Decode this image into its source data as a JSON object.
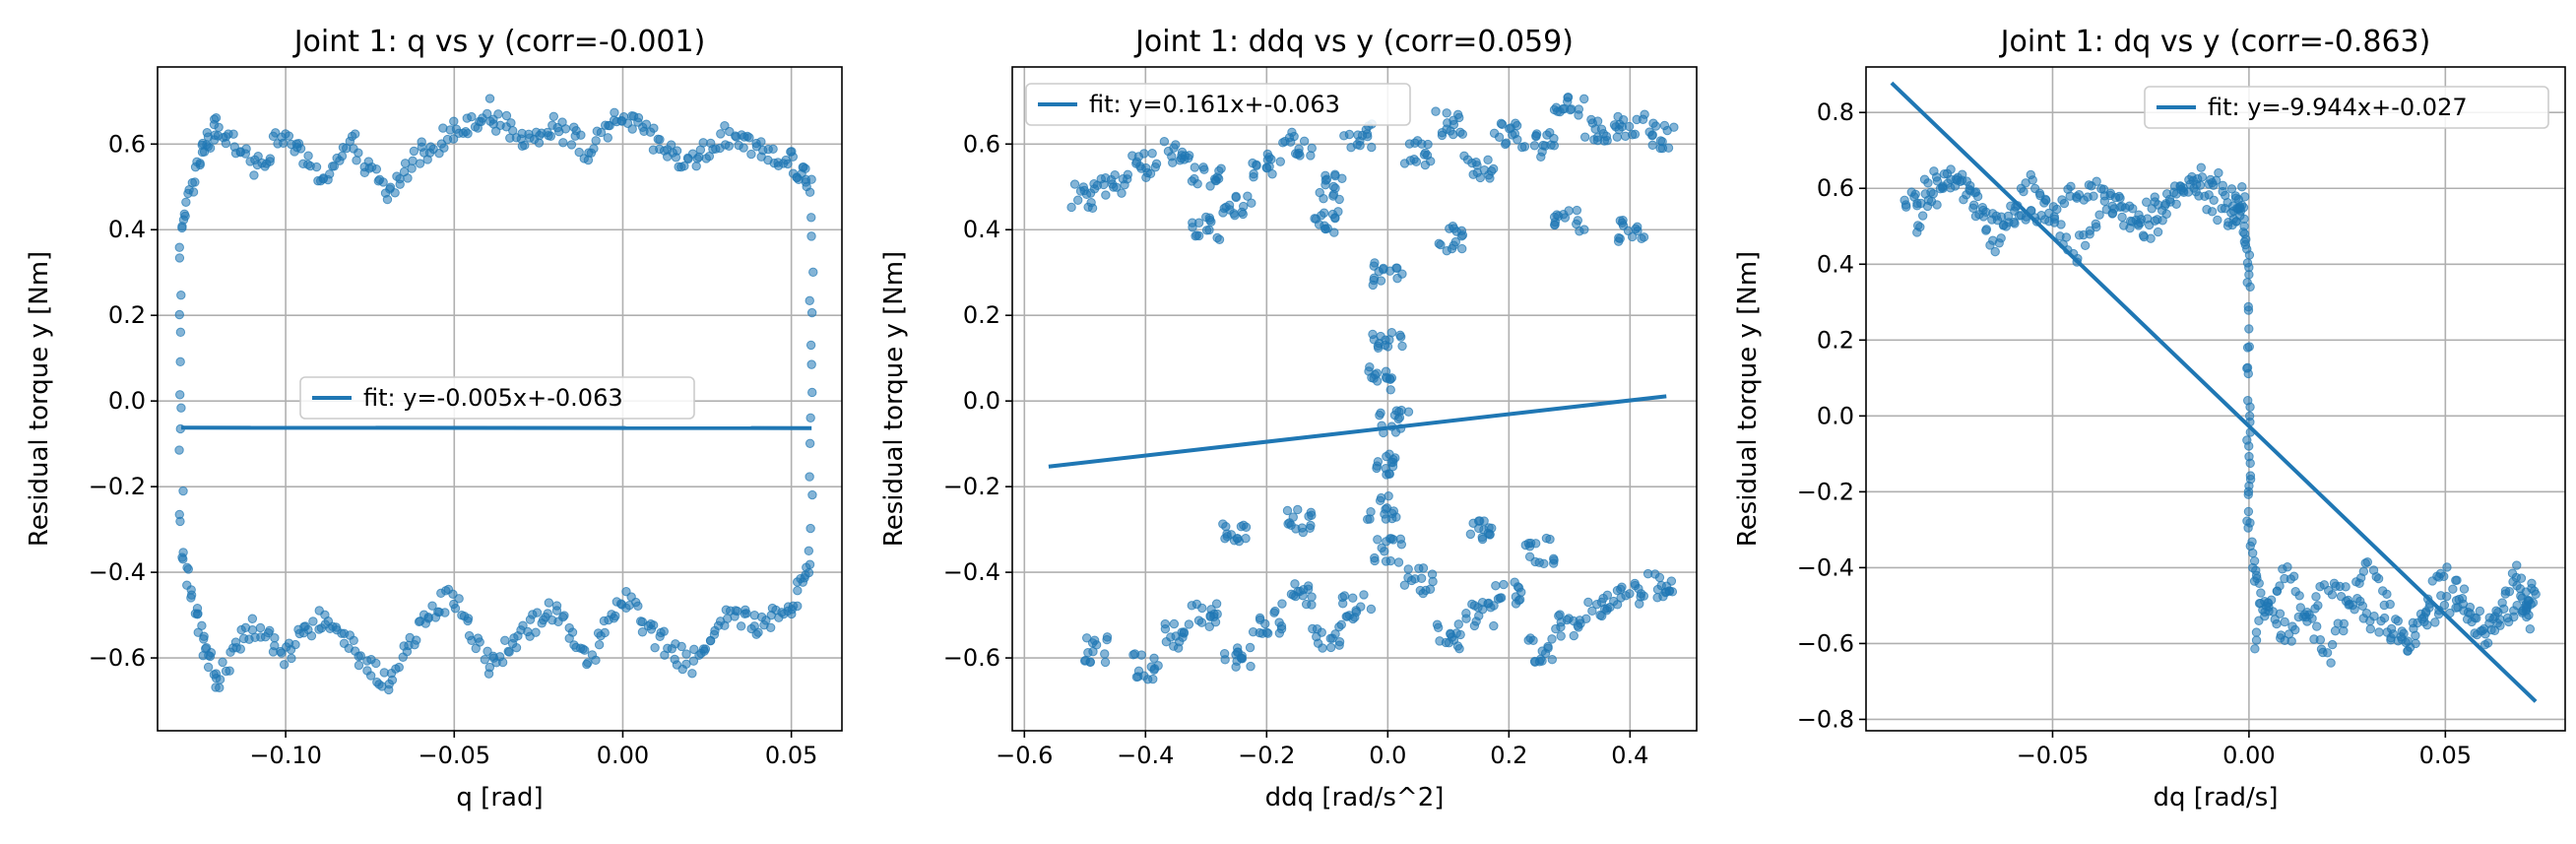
{
  "figure": {
    "plot_color": "#1f77b4",
    "grid_color": "#b0b0b0"
  },
  "chart_data": [
    {
      "type": "scatter",
      "title": "Joint 1: q vs y (corr=-0.001)",
      "xlabel": "q [rad]",
      "ylabel": "Residual torque y [Nm]",
      "xlim": [
        -0.138,
        0.065
      ],
      "ylim": [
        -0.77,
        0.78
      ],
      "xticks": [
        -0.1,
        -0.05,
        0.0,
        0.05
      ],
      "xtick_labels": [
        "−0.10",
        "−0.05",
        "0.00",
        "0.05"
      ],
      "yticks": [
        -0.6,
        -0.4,
        -0.2,
        0.0,
        0.2,
        0.4,
        0.6
      ],
      "ytick_labels": [
        "−0.6",
        "−0.4",
        "−0.2",
        "0.0",
        "0.2",
        "0.4",
        "0.6"
      ],
      "grid": true,
      "legend": {
        "placement": "center",
        "label": "fit: y=-0.005x+-0.063"
      },
      "fit": {
        "slope": -0.005,
        "intercept": -0.063,
        "x_range": [
          -0.131,
          0.056
        ]
      },
      "series": [
        {
          "name": "",
          "path": [
            [
              -0.131,
              0.42
            ],
            [
              -0.125,
              0.58
            ],
            [
              -0.12,
              0.64
            ],
            [
              -0.11,
              0.55
            ],
            [
              -0.1,
              0.62
            ],
            [
              -0.09,
              0.52
            ],
            [
              -0.08,
              0.6
            ],
            [
              -0.07,
              0.48
            ],
            [
              -0.06,
              0.58
            ],
            [
              -0.05,
              0.63
            ],
            [
              -0.04,
              0.68
            ],
            [
              -0.03,
              0.6
            ],
            [
              -0.02,
              0.65
            ],
            [
              -0.01,
              0.58
            ],
            [
              0.0,
              0.67
            ],
            [
              0.01,
              0.6
            ],
            [
              0.02,
              0.55
            ],
            [
              0.03,
              0.62
            ],
            [
              0.04,
              0.58
            ],
            [
              0.05,
              0.56
            ],
            [
              0.056,
              0.5
            ]
          ]
        },
        {
          "name": "",
          "path": [
            [
              -0.131,
              -0.35
            ],
            [
              -0.125,
              -0.55
            ],
            [
              -0.12,
              -0.65
            ],
            [
              -0.11,
              -0.52
            ],
            [
              -0.1,
              -0.6
            ],
            [
              -0.09,
              -0.5
            ],
            [
              -0.08,
              -0.58
            ],
            [
              -0.07,
              -0.66
            ],
            [
              -0.06,
              -0.52
            ],
            [
              -0.05,
              -0.45
            ],
            [
              -0.04,
              -0.62
            ],
            [
              -0.03,
              -0.55
            ],
            [
              -0.02,
              -0.48
            ],
            [
              -0.01,
              -0.6
            ],
            [
              0.0,
              -0.45
            ],
            [
              0.01,
              -0.55
            ],
            [
              0.02,
              -0.62
            ],
            [
              0.03,
              -0.5
            ],
            [
              0.04,
              -0.52
            ],
            [
              0.05,
              -0.48
            ],
            [
              0.056,
              -0.35
            ]
          ]
        },
        {
          "name": "",
          "path": [
            [
              -0.131,
              0.42
            ],
            [
              -0.131,
              -0.35
            ]
          ]
        },
        {
          "name": "",
          "path": [
            [
              0.056,
              0.5
            ],
            [
              0.056,
              -0.35
            ]
          ]
        }
      ]
    },
    {
      "type": "scatter",
      "title": "Joint 1: ddq vs y (corr=0.059)",
      "xlabel": "ddq [rad/s^2]",
      "ylabel": "Residual torque y [Nm]",
      "xlim": [
        -0.62,
        0.51
      ],
      "ylim": [
        -0.77,
        0.78
      ],
      "xticks": [
        -0.6,
        -0.4,
        -0.2,
        0.0,
        0.2,
        0.4
      ],
      "xtick_labels": [
        "−0.6",
        "−0.4",
        "−0.2",
        "0.0",
        "0.2",
        "0.4"
      ],
      "yticks": [
        -0.6,
        -0.4,
        -0.2,
        0.0,
        0.2,
        0.4,
        0.6
      ],
      "ytick_labels": [
        "−0.6",
        "−0.4",
        "−0.2",
        "0.0",
        "0.2",
        "0.4",
        "0.6"
      ],
      "grid": true,
      "legend": {
        "placement": "top-left",
        "label": "fit: y=0.161x+-0.063"
      },
      "fit": {
        "slope": 0.161,
        "intercept": -0.063,
        "x_range": [
          -0.56,
          0.46
        ]
      },
      "series": [
        {
          "name": "",
          "points": [
            [
              -0.5,
              0.48
            ],
            [
              -0.45,
              0.5
            ],
            [
              -0.4,
              0.55
            ],
            [
              -0.35,
              0.58
            ],
            [
              -0.3,
              0.52
            ],
            [
              -0.25,
              0.45
            ],
            [
              -0.2,
              0.55
            ],
            [
              -0.15,
              0.6
            ],
            [
              -0.1,
              0.5
            ],
            [
              -0.05,
              0.62
            ],
            [
              0.05,
              0.58
            ],
            [
              0.1,
              0.65
            ],
            [
              0.15,
              0.55
            ],
            [
              0.2,
              0.62
            ],
            [
              0.25,
              0.6
            ],
            [
              0.3,
              0.68
            ],
            [
              0.35,
              0.63
            ],
            [
              0.4,
              0.64
            ],
            [
              0.45,
              0.62
            ],
            [
              -0.3,
              0.4
            ],
            [
              -0.1,
              0.42
            ],
            [
              0.1,
              0.38
            ],
            [
              0.3,
              0.42
            ],
            [
              0.4,
              0.4
            ],
            [
              0.0,
              0.3
            ],
            [
              0.0,
              0.15
            ],
            [
              -0.01,
              0.05
            ],
            [
              0.01,
              -0.05
            ],
            [
              0.0,
              -0.15
            ],
            [
              -0.01,
              -0.25
            ],
            [
              0.0,
              -0.35
            ],
            [
              -0.25,
              -0.3
            ],
            [
              -0.15,
              -0.28
            ],
            [
              0.15,
              -0.3
            ],
            [
              0.25,
              -0.35
            ],
            [
              -0.48,
              -0.58
            ],
            [
              -0.4,
              -0.62
            ],
            [
              -0.35,
              -0.55
            ],
            [
              -0.3,
              -0.5
            ],
            [
              -0.25,
              -0.6
            ],
            [
              -0.2,
              -0.52
            ],
            [
              -0.15,
              -0.45
            ],
            [
              -0.1,
              -0.55
            ],
            [
              -0.05,
              -0.48
            ],
            [
              0.05,
              -0.42
            ],
            [
              0.1,
              -0.55
            ],
            [
              0.15,
              -0.5
            ],
            [
              0.2,
              -0.45
            ],
            [
              0.25,
              -0.58
            ],
            [
              0.3,
              -0.52
            ],
            [
              0.35,
              -0.48
            ],
            [
              0.4,
              -0.45
            ],
            [
              0.45,
              -0.43
            ]
          ]
        }
      ]
    },
    {
      "type": "scatter",
      "title": "Joint 1: dq vs y (corr=-0.863)",
      "xlabel": "dq [rad/s]",
      "ylabel": "Residual torque y [Nm]",
      "xlim": [
        -0.0975,
        0.0805
      ],
      "ylim": [
        -0.83,
        0.92
      ],
      "xticks": [
        -0.05,
        0.0,
        0.05
      ],
      "xtick_labels": [
        "−0.05",
        "0.00",
        "0.05"
      ],
      "yticks": [
        -0.8,
        -0.6,
        -0.4,
        -0.2,
        0.0,
        0.2,
        0.4,
        0.6,
        0.8
      ],
      "ytick_labels": [
        "−0.8",
        "−0.6",
        "−0.4",
        "−0.2",
        "0.0",
        "0.2",
        "0.4",
        "0.6",
        "0.8"
      ],
      "grid": true,
      "legend": {
        "placement": "top-right",
        "label": "fit: y=-9.944x+-0.027"
      },
      "fit": {
        "slope": -9.944,
        "intercept": -0.027,
        "x_range": [
          -0.091,
          0.073
        ]
      },
      "series": [
        {
          "name": "",
          "path": [
            [
              -0.088,
              0.55
            ],
            [
              -0.08,
              0.62
            ],
            [
              -0.07,
              0.58
            ],
            [
              -0.06,
              0.5
            ],
            [
              -0.05,
              0.55
            ],
            [
              -0.04,
              0.6
            ],
            [
              -0.03,
              0.52
            ],
            [
              -0.02,
              0.58
            ],
            [
              -0.01,
              0.64
            ],
            [
              -0.002,
              0.55
            ],
            [
              0.0,
              0.4
            ],
            [
              0.0,
              0.0
            ],
            [
              0.0,
              -0.3
            ],
            [
              0.003,
              -0.5
            ],
            [
              0.01,
              -0.58
            ],
            [
              0.02,
              -0.45
            ],
            [
              0.03,
              -0.52
            ],
            [
              0.04,
              -0.6
            ],
            [
              0.05,
              -0.48
            ],
            [
              0.06,
              -0.55
            ],
            [
              0.07,
              -0.5
            ],
            [
              0.073,
              -0.45
            ]
          ]
        },
        {
          "name": "",
          "path": [
            [
              -0.085,
              0.48
            ],
            [
              -0.075,
              0.65
            ],
            [
              -0.065,
              0.45
            ],
            [
              -0.055,
              0.62
            ],
            [
              -0.045,
              0.42
            ],
            [
              -0.035,
              0.58
            ],
            [
              -0.025,
              0.48
            ],
            [
              -0.015,
              0.62
            ],
            [
              -0.005,
              0.5
            ],
            [
              -0.001,
              0.6
            ]
          ]
        },
        {
          "name": "",
          "path": [
            [
              0.001,
              -0.6
            ],
            [
              0.01,
              -0.4
            ],
            [
              0.02,
              -0.65
            ],
            [
              0.03,
              -0.38
            ],
            [
              0.04,
              -0.62
            ],
            [
              0.05,
              -0.4
            ],
            [
              0.06,
              -0.6
            ],
            [
              0.068,
              -0.42
            ],
            [
              0.072,
              -0.55
            ]
          ]
        }
      ]
    }
  ]
}
